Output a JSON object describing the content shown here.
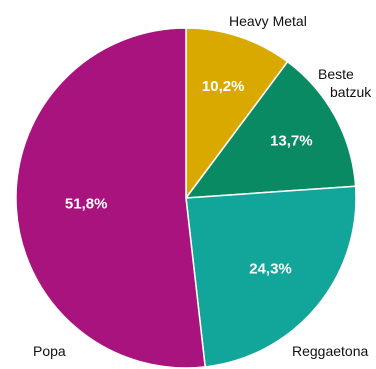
{
  "chart_data": {
    "type": "pie",
    "start": "12 o'clock",
    "direction": "clockwise",
    "slices": [
      {
        "label_lines": [
          "Heavy Metal"
        ],
        "value": 10.2,
        "value_label": "10,2%",
        "color": "#D9A900"
      },
      {
        "label_lines": [
          "Beste",
          "batzuk"
        ],
        "value": 13.7,
        "value_label": "13,7%",
        "color": "#0A8A63"
      },
      {
        "label_lines": [
          "Reggaetona"
        ],
        "value": 24.3,
        "value_label": "24,3%",
        "color": "#12A59A"
      },
      {
        "label_lines": [
          "Popa"
        ],
        "value": 51.8,
        "value_label": "51,8%",
        "color": "#A8137D"
      }
    ]
  }
}
